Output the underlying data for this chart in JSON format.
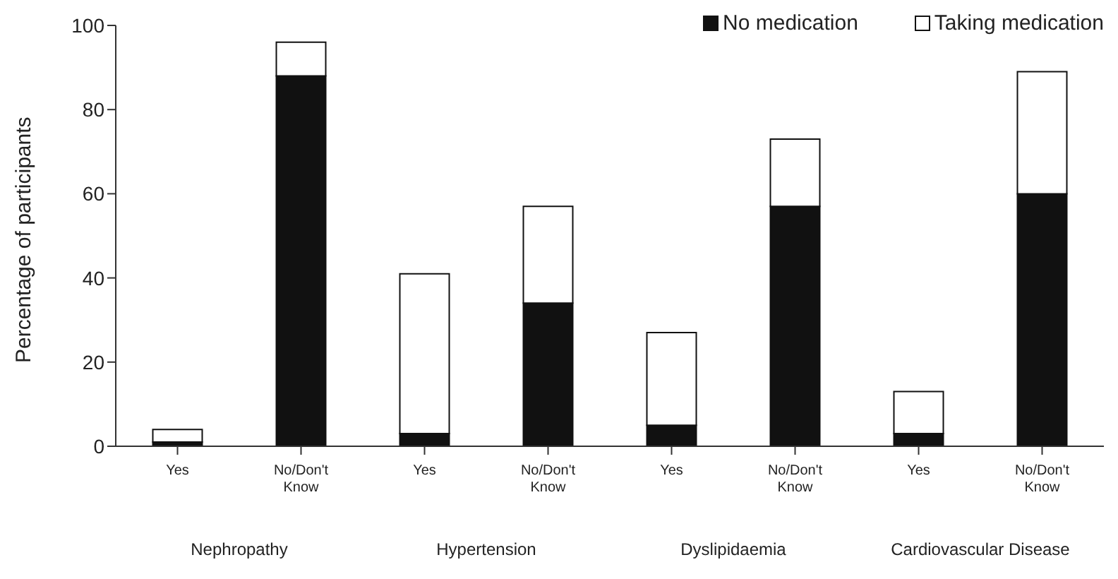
{
  "chart_data": {
    "type": "bar",
    "ylabel": "Percentage of participants",
    "categories": [
      "Yes",
      "No/Don't Know",
      "Yes",
      "No/Don't Know",
      "Yes",
      "No/Don't Know",
      "Yes",
      "No/Don't Know"
    ],
    "series": [
      {
        "name": "No medication",
        "color": "#111111",
        "values": [
          1,
          88,
          3,
          34,
          5,
          57,
          3,
          60
        ]
      },
      {
        "name": "Taking medication",
        "color": "#ffffff",
        "values": [
          3,
          8,
          38,
          23,
          22,
          16,
          10,
          29
        ]
      }
    ],
    "stacked": true,
    "ylim": [
      0,
      100
    ],
    "yticks": [
      0,
      20,
      40,
      60,
      80,
      100
    ],
    "legend": "top right",
    "annotations": [
      "Nephropathy",
      "Hypertension",
      "Dyslipidaemia",
      "Cardiovascular Disease"
    ]
  }
}
